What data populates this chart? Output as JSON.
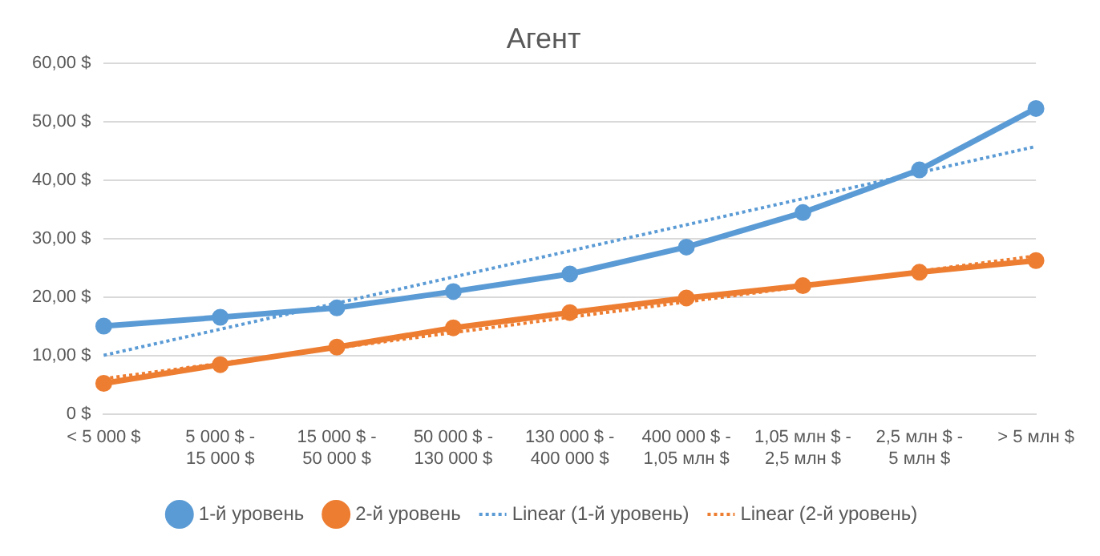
{
  "chart_data": {
    "type": "line",
    "title": "Агент",
    "categories": [
      "< 5 000 $",
      "5 000 $ - 15 000 $",
      "15 000 $ - 50 000 $",
      "50 000 $ - 130 000 $",
      "130 000 $ - 400 000 $",
      "400 000 $ - 1,05 млн $",
      "1,05 млн $ - 2,5 млн $",
      "2,5 млн $ - 5 млн $",
      "> 5 млн $"
    ],
    "series": [
      {
        "name": "1-й уровень",
        "color": "#5b9bd5",
        "values": [
          15.1,
          16.6,
          18.2,
          21.0,
          24.0,
          28.6,
          34.5,
          41.8,
          52.3
        ]
      },
      {
        "name": "2-й уровень",
        "color": "#ed7d31",
        "values": [
          5.3,
          8.5,
          11.5,
          14.8,
          17.4,
          19.9,
          22.0,
          24.3,
          26.3
        ]
      },
      {
        "name": "Linear (1-й уровень)",
        "color": "#5b9bd5",
        "line_style": "dotted",
        "marker": "none",
        "values": [
          10.1,
          null,
          null,
          null,
          null,
          null,
          null,
          null,
          45.8
        ]
      },
      {
        "name": "Linear (2-й уровень)",
        "color": "#ed7d31",
        "line_style": "dotted",
        "marker": "none",
        "values": [
          6.1,
          null,
          null,
          null,
          null,
          null,
          null,
          null,
          27.1
        ]
      }
    ],
    "ylim": [
      0,
      60
    ],
    "yticks": [
      {
        "value": 0,
        "label": "0 $"
      },
      {
        "value": 10,
        "label": "10,00 $"
      },
      {
        "value": 20,
        "label": "20,00 $"
      },
      {
        "value": 30,
        "label": "30,00 $"
      },
      {
        "value": 40,
        "label": "40,00 $"
      },
      {
        "value": 50,
        "label": "50,00 $"
      },
      {
        "value": 60,
        "label": "60,00 $"
      }
    ],
    "grid": "y",
    "legend": "bottom",
    "marker": "circle",
    "line_style": "solid"
  }
}
